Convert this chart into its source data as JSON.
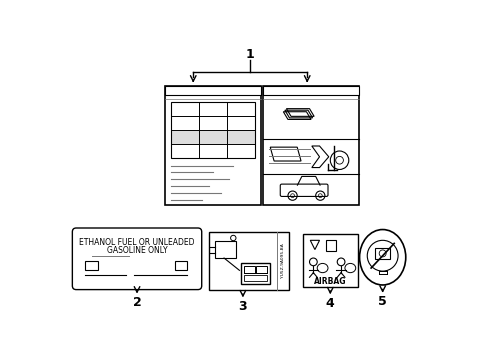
{
  "bg_color": "#ffffff",
  "line_color": "#000000",
  "gray_color": "#777777",
  "label_1": "1",
  "label_2": "2",
  "label_3": "3",
  "label_4": "4",
  "label_5": "5",
  "fuel_text_line1": "ETHANOL FUEL OR UNLEADED",
  "fuel_text_line2": "GASOLINE ONLY",
  "airbag_text": "AIRBAG",
  "part_text": "YU5Z-9A095-BA"
}
